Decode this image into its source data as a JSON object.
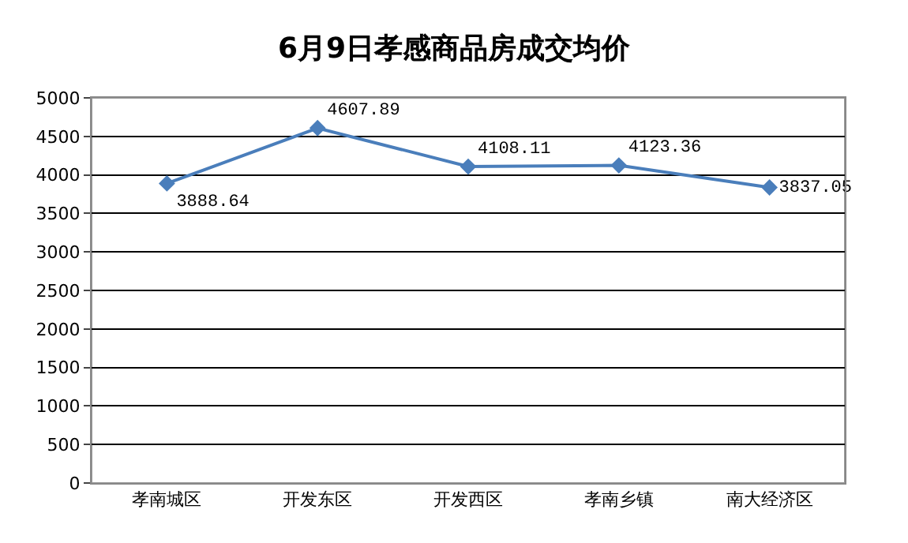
{
  "chart_data": {
    "type": "line",
    "title": "6月9日孝感商品房成交均价",
    "categories": [
      "孝南城区",
      "开发东区",
      "开发西区",
      "孝南乡镇",
      "南大经济区"
    ],
    "series": [
      {
        "color": "#4a7ebb",
        "values": [
          3888.64,
          4607.89,
          4108.11,
          4123.36,
          3837.05
        ]
      }
    ],
    "ylim": [
      0,
      5000
    ],
    "yticks": [
      0,
      500,
      1000,
      1500,
      2000,
      2500,
      3000,
      3500,
      4000,
      4500,
      5000
    ],
    "grid": "y",
    "legend": false,
    "marker": "diamond",
    "line_style": "solid",
    "data_labels": true
  }
}
